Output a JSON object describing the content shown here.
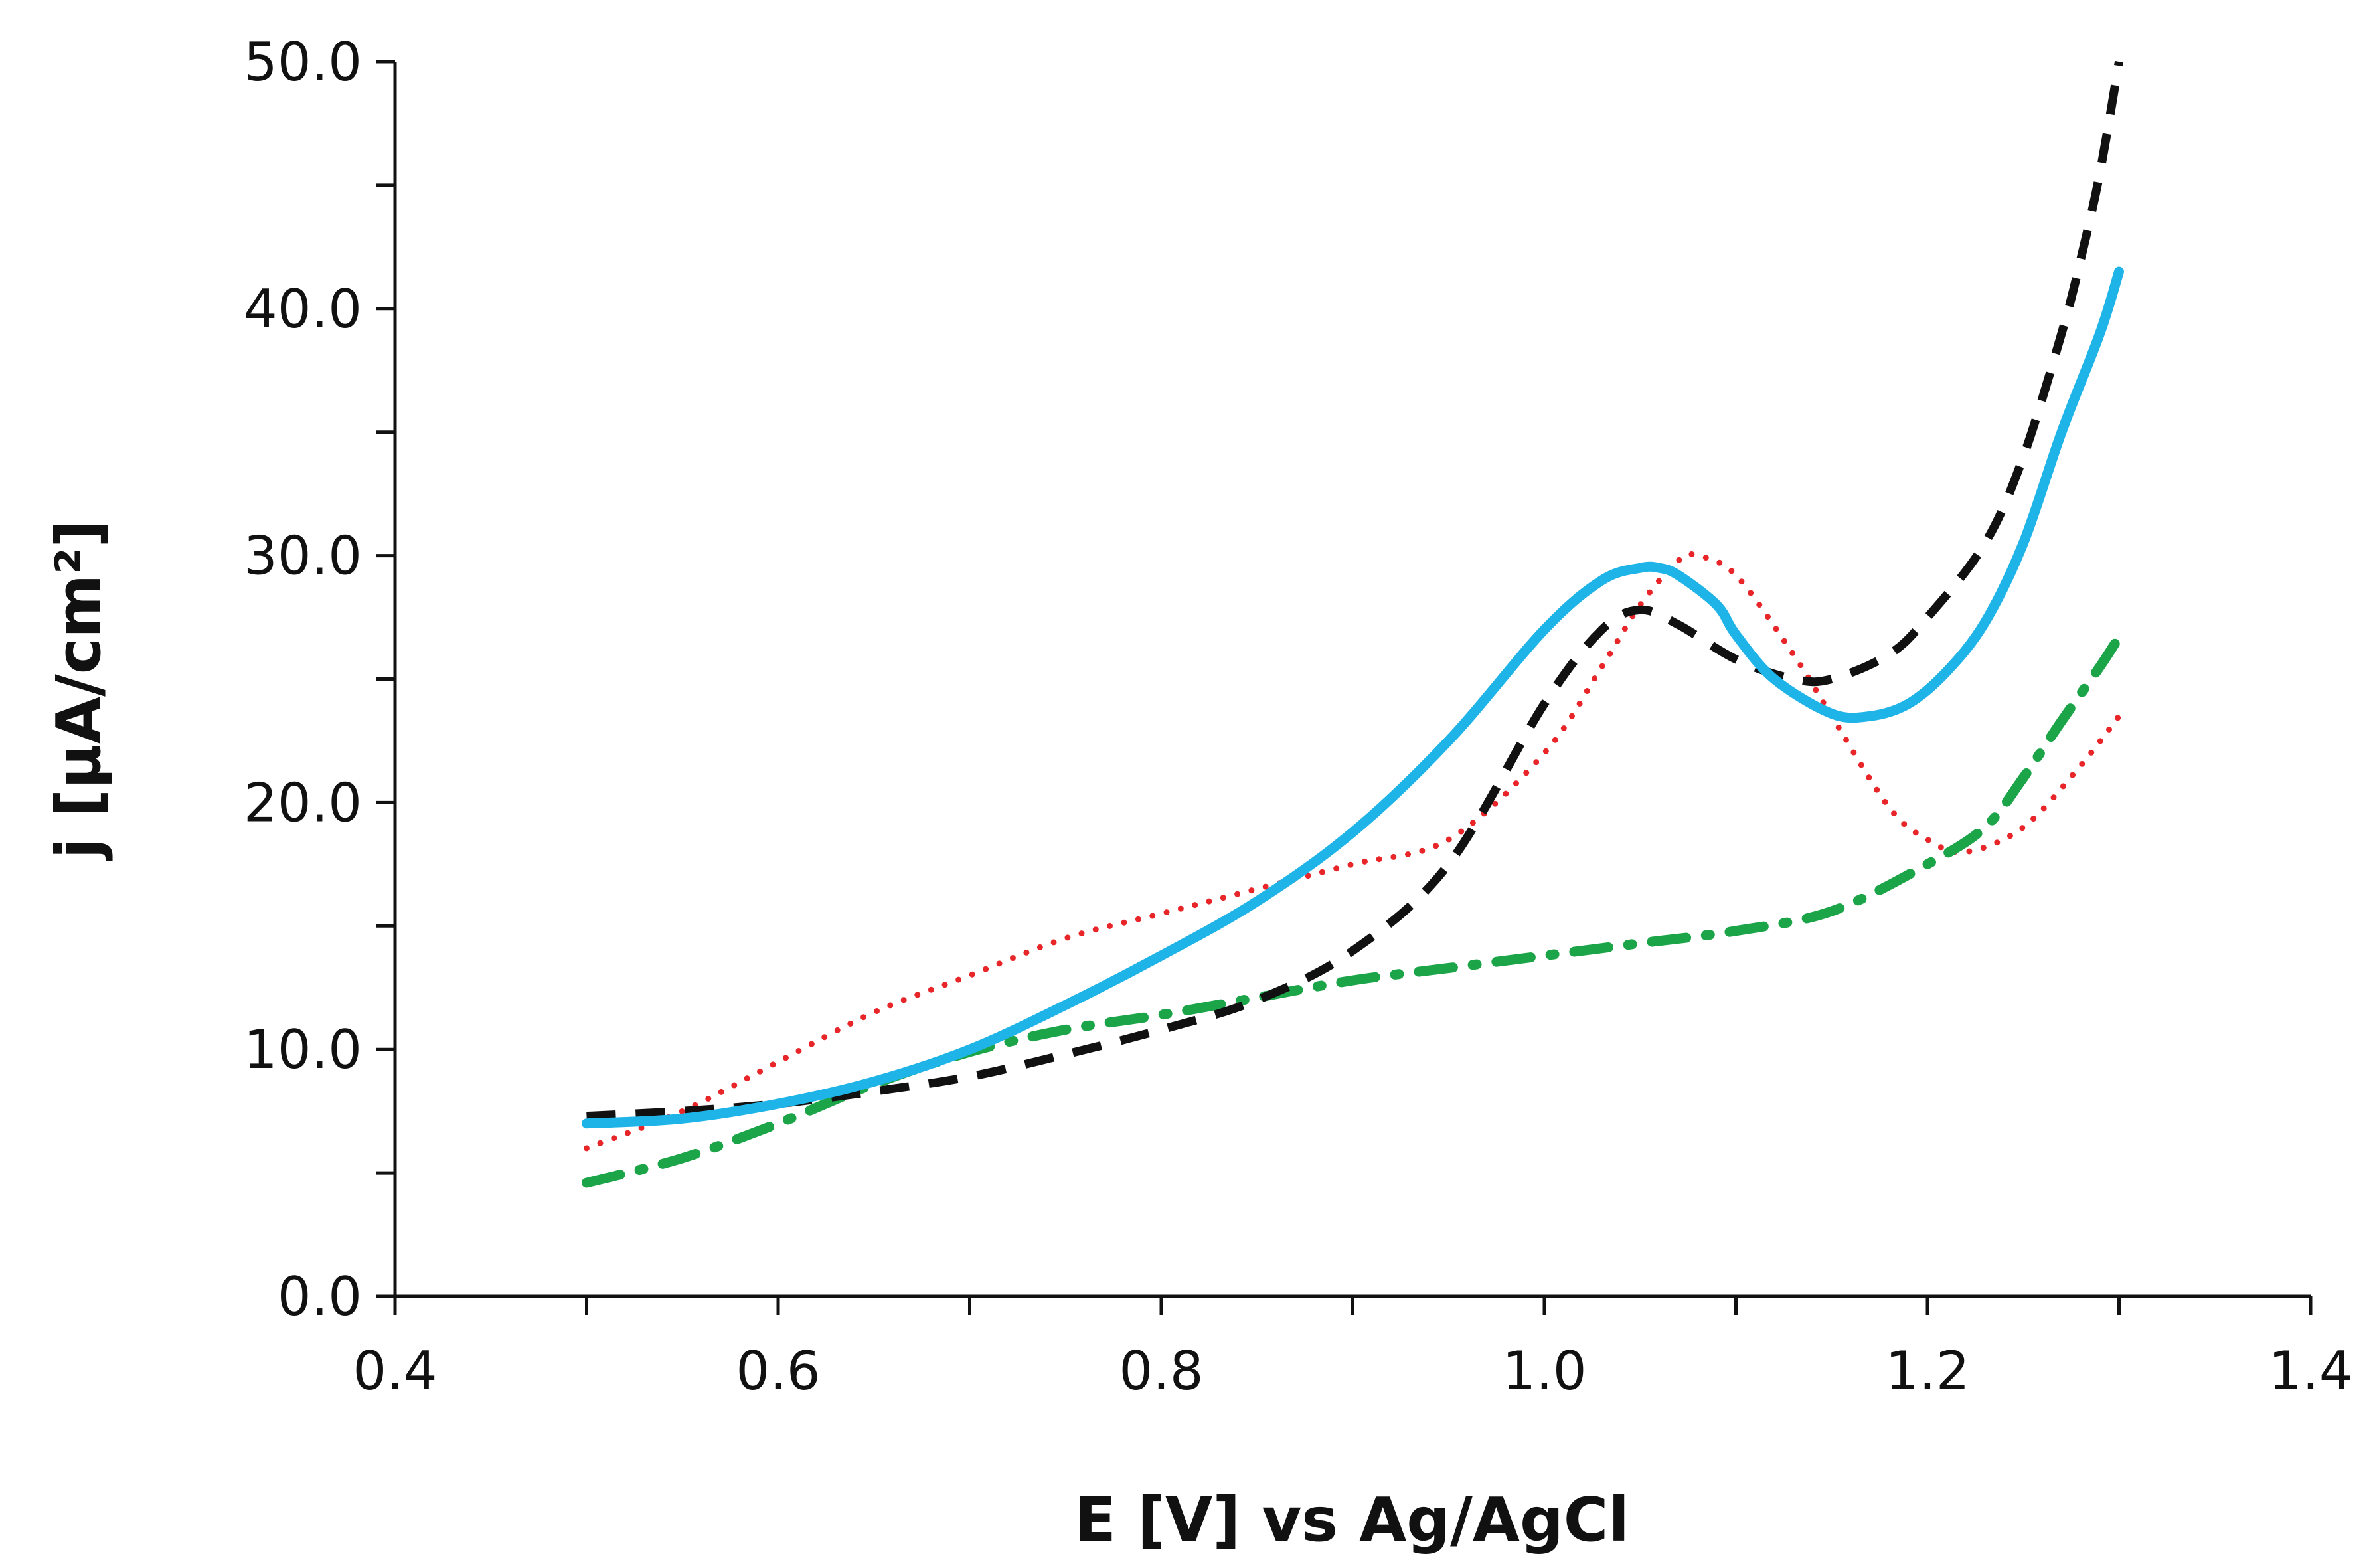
{
  "chart_data": {
    "type": "line",
    "title": "",
    "xlabel": "E [V] vs Ag/AgCl",
    "ylabel": "j [μA/cm²]",
    "xlim": [
      0.4,
      1.4
    ],
    "ylim": [
      0,
      50
    ],
    "x_ticks": [
      0.4,
      0.6,
      0.8,
      1.0,
      1.2,
      1.4
    ],
    "x_tick_labels": [
      "0.4",
      "0.6",
      "0.8",
      "1.0",
      "1.2",
      "1.4"
    ],
    "y_ticks": [
      0,
      10,
      20,
      30,
      40,
      50
    ],
    "y_tick_labels": [
      "0.0",
      "10.0",
      "20.0",
      "30.0",
      "40.0",
      "50.0"
    ],
    "grid": false,
    "legend": "none",
    "series": [
      {
        "name": "black dashed",
        "style": "dashed",
        "color": "#111111",
        "x": [
          0.5,
          0.55,
          0.6,
          0.65,
          0.7,
          0.75,
          0.8,
          0.85,
          0.9,
          0.95,
          1.0,
          1.03,
          1.05,
          1.07,
          1.1,
          1.13,
          1.15,
          1.18,
          1.2,
          1.23,
          1.25,
          1.27,
          1.28,
          1.29,
          1.3
        ],
        "y": [
          7.3,
          7.5,
          7.8,
          8.3,
          8.9,
          9.8,
          10.8,
          12.0,
          14.0,
          17.5,
          24.0,
          27.0,
          27.8,
          27.2,
          25.8,
          25.0,
          25.0,
          26.0,
          27.5,
          30.5,
          34.0,
          39.0,
          42.0,
          45.5,
          50.0
        ]
      },
      {
        "name": "blue solid",
        "style": "solid",
        "color": "#1FB4E8",
        "x": [
          0.5,
          0.55,
          0.6,
          0.65,
          0.7,
          0.75,
          0.8,
          0.85,
          0.9,
          0.95,
          1.0,
          1.03,
          1.05,
          1.06,
          1.07,
          1.09,
          1.1,
          1.12,
          1.15,
          1.17,
          1.19,
          1.21,
          1.23,
          1.25,
          1.27,
          1.29,
          1.3
        ],
        "y": [
          7.0,
          7.2,
          7.8,
          8.7,
          10.0,
          11.8,
          13.8,
          16.0,
          18.8,
          22.5,
          27.0,
          29.0,
          29.5,
          29.5,
          29.2,
          28.0,
          26.8,
          25.0,
          23.6,
          23.5,
          24.0,
          25.3,
          27.3,
          30.5,
          35.0,
          39.0,
          41.5
        ]
      },
      {
        "name": "red dotted",
        "style": "dotted",
        "color": "#E8262A",
        "x": [
          0.5,
          0.55,
          0.6,
          0.65,
          0.7,
          0.75,
          0.8,
          0.85,
          0.9,
          0.95,
          1.0,
          1.03,
          1.05,
          1.07,
          1.08,
          1.1,
          1.13,
          1.15,
          1.18,
          1.2,
          1.22,
          1.25,
          1.28,
          1.3
        ],
        "y": [
          6.0,
          7.5,
          9.5,
          11.5,
          13.0,
          14.5,
          15.5,
          16.5,
          17.5,
          18.5,
          22.0,
          25.5,
          28.0,
          29.8,
          30.0,
          29.2,
          26.0,
          23.5,
          19.8,
          18.5,
          18.0,
          19.0,
          21.5,
          23.5
        ]
      },
      {
        "name": "green dash-dot",
        "style": "dashdot",
        "color": "#1BA548",
        "x": [
          0.5,
          0.55,
          0.6,
          0.65,
          0.7,
          0.75,
          0.8,
          0.85,
          0.9,
          0.95,
          1.0,
          1.05,
          1.1,
          1.15,
          1.2,
          1.23,
          1.25,
          1.27,
          1.29,
          1.3
        ],
        "y": [
          4.6,
          5.6,
          7.0,
          8.6,
          9.9,
          10.8,
          11.4,
          12.1,
          12.8,
          13.3,
          13.8,
          14.3,
          14.8,
          15.6,
          17.5,
          19.0,
          21.0,
          23.3,
          25.5,
          26.7
        ]
      }
    ]
  }
}
